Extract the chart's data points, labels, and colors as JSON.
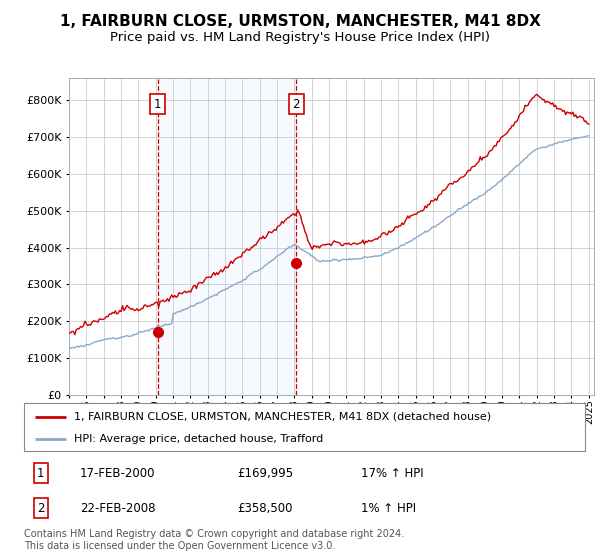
{
  "title": "1, FAIRBURN CLOSE, URMSTON, MANCHESTER, M41 8DX",
  "subtitle": "Price paid vs. HM Land Registry's House Price Index (HPI)",
  "xlim": [
    1995.0,
    2025.3
  ],
  "ylim": [
    0,
    860000
  ],
  "yticks": [
    0,
    100000,
    200000,
    300000,
    400000,
    500000,
    600000,
    700000,
    800000
  ],
  "ytick_labels": [
    "£0",
    "£100K",
    "£200K",
    "£300K",
    "£400K",
    "£500K",
    "£600K",
    "£700K",
    "£800K"
  ],
  "transaction1_x": 2000.12,
  "transaction1_y": 169995,
  "transaction2_x": 2008.12,
  "transaction2_y": 358500,
  "line_red_color": "#cc0000",
  "line_blue_color": "#88aacc",
  "vline_color": "#cc0000",
  "background_shading_color": "#ddeeff",
  "background_shading_alpha": 0.25,
  "legend_line1": "1, FAIRBURN CLOSE, URMSTON, MANCHESTER, M41 8DX (detached house)",
  "legend_line2": "HPI: Average price, detached house, Trafford",
  "table_row1": [
    "1",
    "17-FEB-2000",
    "£169,995",
    "17% ↑ HPI"
  ],
  "table_row2": [
    "2",
    "22-FEB-2008",
    "£358,500",
    "1% ↑ HPI"
  ],
  "footer": "Contains HM Land Registry data © Crown copyright and database right 2024.\nThis data is licensed under the Open Government Licence v3.0.",
  "title_fontsize": 11,
  "subtitle_fontsize": 9.5,
  "axis_fontsize": 8.5,
  "tick_fontsize": 8
}
